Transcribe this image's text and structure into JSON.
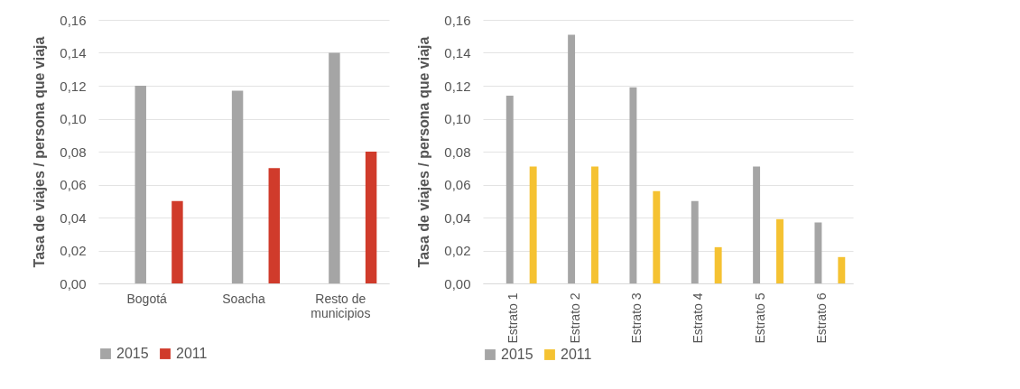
{
  "chart_data": [
    {
      "type": "bar",
      "ylabel": "Tasa de viajes / persona que viaja",
      "categories": [
        "Bogotá",
        "Soacha",
        "Resto de municipios"
      ],
      "series": [
        {
          "name": "2015",
          "color": "#a5a5a5",
          "values": [
            0.12,
            0.117,
            0.14
          ]
        },
        {
          "name": "2011",
          "color": "#d03b2b",
          "values": [
            0.05,
            0.07,
            0.08
          ]
        }
      ],
      "ylim": [
        0,
        0.16
      ],
      "yticks": [
        {
          "value": 0,
          "label": "0,00"
        },
        {
          "value": 0.02,
          "label": "0,02"
        },
        {
          "value": 0.04,
          "label": "0,04"
        },
        {
          "value": 0.06,
          "label": "0,06"
        },
        {
          "value": 0.08,
          "label": "0,08"
        },
        {
          "value": 0.1,
          "label": "0,10"
        },
        {
          "value": 0.12,
          "label": "0,12"
        },
        {
          "value": 0.14,
          "label": "0,14"
        },
        {
          "value": 0.16,
          "label": "0,16"
        }
      ],
      "grid": "y",
      "legend": "bottom"
    },
    {
      "type": "bar",
      "ylabel": "Tasa de viajes / persona que viaja",
      "categories": [
        "Estrato 1",
        "Estrato 2",
        "Estrato 3",
        "Estrato 4",
        "Estrato 5",
        "Estrato 6"
      ],
      "series": [
        {
          "name": "2015",
          "color": "#a5a5a5",
          "values": [
            0.114,
            0.151,
            0.119,
            0.05,
            0.071,
            0.037
          ]
        },
        {
          "name": "2011",
          "color": "#f5c232",
          "values": [
            0.071,
            0.071,
            0.056,
            0.022,
            0.039,
            0.016
          ]
        }
      ],
      "ylim": [
        0,
        0.16
      ],
      "yticks": [
        {
          "value": 0,
          "label": "0,00"
        },
        {
          "value": 0.02,
          "label": "0,02"
        },
        {
          "value": 0.04,
          "label": "0,04"
        },
        {
          "value": 0.06,
          "label": "0,06"
        },
        {
          "value": 0.08,
          "label": "0,08"
        },
        {
          "value": 0.1,
          "label": "0,10"
        },
        {
          "value": 0.12,
          "label": "0,12"
        },
        {
          "value": 0.14,
          "label": "0,14"
        },
        {
          "value": 0.16,
          "label": "0,16"
        }
      ],
      "grid": "y",
      "legend": "bottom"
    }
  ]
}
